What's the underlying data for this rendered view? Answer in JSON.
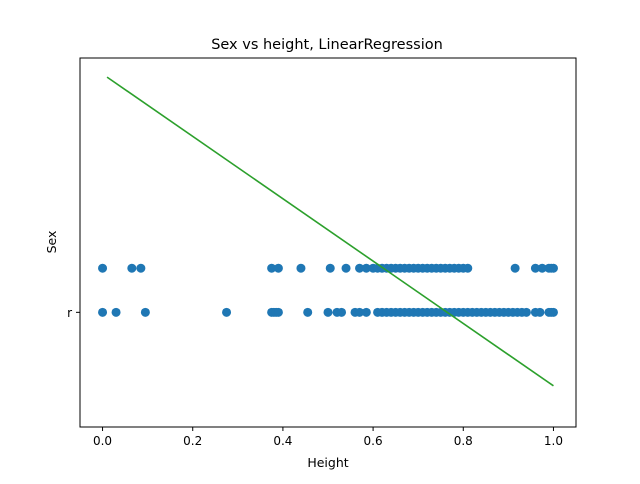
{
  "chart_data": {
    "type": "scatter",
    "title": "Sex vs height, LinearRegression",
    "xlabel": "Height",
    "ylabel": "Sex",
    "xlim": [
      -0.05,
      1.05
    ],
    "ylim": [
      -0.78,
      1.73
    ],
    "xticks": [
      0.0,
      0.2,
      0.4,
      0.6,
      0.8,
      1.0
    ],
    "xtick_labels": [
      "0.0",
      "0.2",
      "0.4",
      "0.6",
      "0.8",
      "1.0"
    ],
    "yticks": [
      0
    ],
    "ytick_labels": [
      "r"
    ],
    "grid": false,
    "marker_color": "#1f77b4",
    "line_color": "#2ca02c",
    "series": [
      {
        "type": "scatter",
        "points": [
          [
            0.0,
            0.3
          ],
          [
            0.065,
            0.3
          ],
          [
            0.085,
            0.3
          ],
          [
            0.375,
            0.3
          ],
          [
            0.39,
            0.3
          ],
          [
            0.44,
            0.3
          ],
          [
            0.505,
            0.3
          ],
          [
            0.54,
            0.3
          ],
          [
            0.57,
            0.3
          ],
          [
            0.585,
            0.3
          ],
          [
            0.6,
            0.3
          ],
          [
            0.61,
            0.3
          ],
          [
            0.62,
            0.3
          ],
          [
            0.63,
            0.3
          ],
          [
            0.64,
            0.3
          ],
          [
            0.65,
            0.3
          ],
          [
            0.66,
            0.3
          ],
          [
            0.67,
            0.3
          ],
          [
            0.68,
            0.3
          ],
          [
            0.69,
            0.3
          ],
          [
            0.7,
            0.3
          ],
          [
            0.71,
            0.3
          ],
          [
            0.72,
            0.3
          ],
          [
            0.73,
            0.3
          ],
          [
            0.74,
            0.3
          ],
          [
            0.75,
            0.3
          ],
          [
            0.76,
            0.3
          ],
          [
            0.77,
            0.3
          ],
          [
            0.78,
            0.3
          ],
          [
            0.79,
            0.3
          ],
          [
            0.8,
            0.3
          ],
          [
            0.81,
            0.3
          ],
          [
            0.915,
            0.3
          ],
          [
            0.96,
            0.3
          ],
          [
            0.975,
            0.3
          ],
          [
            0.99,
            0.3
          ],
          [
            0.995,
            0.3
          ],
          [
            1.0,
            0.3
          ],
          [
            0.0,
            0.0
          ],
          [
            0.03,
            0.0
          ],
          [
            0.095,
            0.0
          ],
          [
            0.275,
            0.0
          ],
          [
            0.375,
            0.0
          ],
          [
            0.38,
            0.0
          ],
          [
            0.385,
            0.0
          ],
          [
            0.39,
            0.0
          ],
          [
            0.455,
            0.0
          ],
          [
            0.5,
            0.0
          ],
          [
            0.52,
            0.0
          ],
          [
            0.53,
            0.0
          ],
          [
            0.56,
            0.0
          ],
          [
            0.57,
            0.0
          ],
          [
            0.585,
            0.0
          ],
          [
            0.61,
            0.0
          ],
          [
            0.62,
            0.0
          ],
          [
            0.63,
            0.0
          ],
          [
            0.64,
            0.0
          ],
          [
            0.65,
            0.0
          ],
          [
            0.66,
            0.0
          ],
          [
            0.67,
            0.0
          ],
          [
            0.68,
            0.0
          ],
          [
            0.69,
            0.0
          ],
          [
            0.7,
            0.0
          ],
          [
            0.71,
            0.0
          ],
          [
            0.72,
            0.0
          ],
          [
            0.73,
            0.0
          ],
          [
            0.74,
            0.0
          ],
          [
            0.75,
            0.0
          ],
          [
            0.76,
            0.0
          ],
          [
            0.77,
            0.0
          ],
          [
            0.78,
            0.0
          ],
          [
            0.79,
            0.0
          ],
          [
            0.8,
            0.0
          ],
          [
            0.81,
            0.0
          ],
          [
            0.82,
            0.0
          ],
          [
            0.83,
            0.0
          ],
          [
            0.84,
            0.0
          ],
          [
            0.85,
            0.0
          ],
          [
            0.86,
            0.0
          ],
          [
            0.87,
            0.0
          ],
          [
            0.88,
            0.0
          ],
          [
            0.89,
            0.0
          ],
          [
            0.9,
            0.0
          ],
          [
            0.91,
            0.0
          ],
          [
            0.92,
            0.0
          ],
          [
            0.93,
            0.0
          ],
          [
            0.94,
            0.0
          ],
          [
            0.96,
            0.0
          ],
          [
            0.97,
            0.0
          ],
          [
            0.99,
            0.0
          ],
          [
            0.995,
            0.0
          ],
          [
            1.0,
            0.0
          ]
        ]
      },
      {
        "type": "line",
        "x": [
          0.01,
          1.0
        ],
        "y": [
          1.6,
          -0.5
        ]
      }
    ]
  }
}
